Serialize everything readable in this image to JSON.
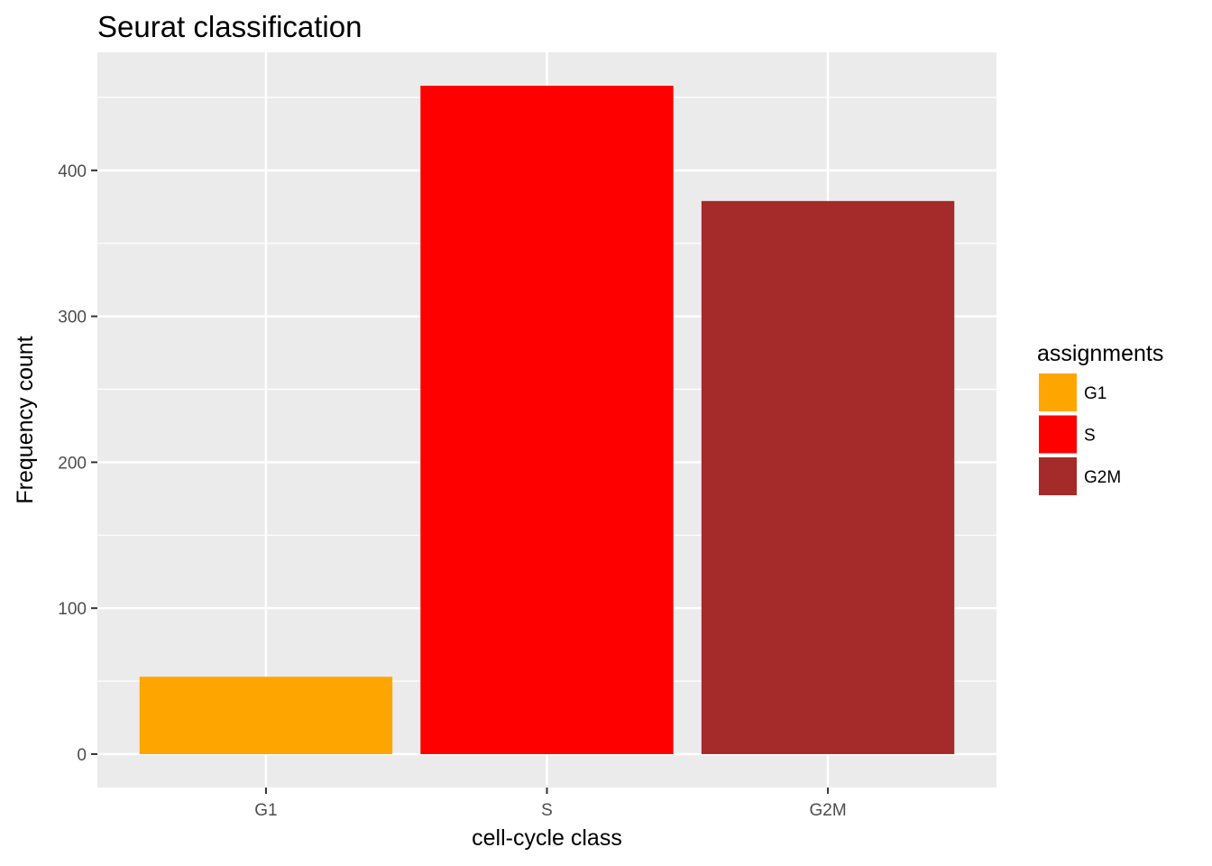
{
  "chart_data": {
    "type": "bar",
    "title": "Seurat classification",
    "xlabel": "cell-cycle class",
    "ylabel": "Frequency count",
    "categories": [
      "G1",
      "S",
      "G2M"
    ],
    "values": [
      53,
      458,
      379
    ],
    "colors": [
      "#FFA500",
      "#FF0000",
      "#A52A2A"
    ],
    "ylim": [
      -22.9,
      480.9
    ],
    "yticks": [
      0,
      100,
      200,
      300,
      400
    ],
    "grid": true,
    "panel_background": "#EBEBEB",
    "legend": {
      "title": "assignments",
      "placement": "right",
      "entries": [
        "G1",
        "S",
        "G2M"
      ]
    }
  }
}
